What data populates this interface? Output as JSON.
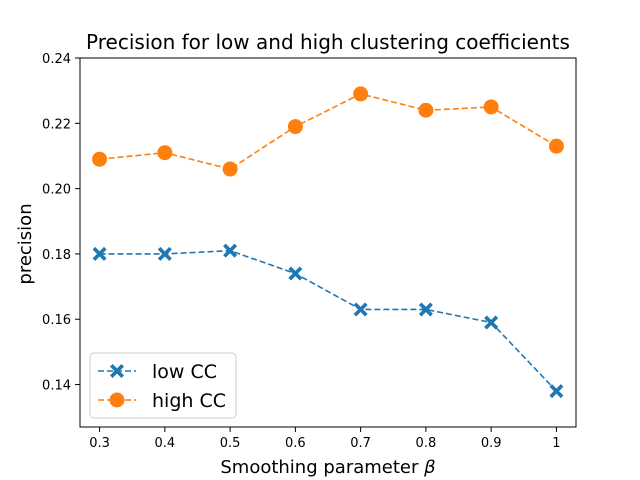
{
  "chart_data": {
    "type": "line",
    "title": "Precision for low and high clustering coefficients",
    "xlabel": "Smoothing parameter",
    "xlabel_symbol": "β",
    "ylabel": "precision",
    "x": [
      0.3,
      0.4,
      0.5,
      0.6,
      0.7,
      0.8,
      0.9,
      1.0
    ],
    "x_tick_labels": [
      "0.3",
      "0.4",
      "0.5",
      "0.6",
      "0.7",
      "0.8",
      "0.9",
      "1"
    ],
    "y_ticks": [
      0.14,
      0.16,
      0.18,
      0.2,
      0.22,
      0.24
    ],
    "y_tick_labels": [
      "0.14",
      "0.16",
      "0.18",
      "0.20",
      "0.22",
      "0.24"
    ],
    "xlim": [
      0.27,
      1.03
    ],
    "ylim": [
      0.127,
      0.24
    ],
    "grid": false,
    "legend_position": "lower-left",
    "series": [
      {
        "name": "low CC",
        "marker": "x-filled",
        "linestyle": "dashed",
        "color": "#1f77b4",
        "values": [
          0.18,
          0.18,
          0.181,
          0.174,
          0.163,
          0.163,
          0.159,
          0.138
        ]
      },
      {
        "name": "high CC",
        "marker": "circle",
        "linestyle": "dashed",
        "color": "#ff7f0e",
        "values": [
          0.209,
          0.211,
          0.206,
          0.219,
          0.229,
          0.224,
          0.225,
          0.213
        ]
      }
    ]
  }
}
